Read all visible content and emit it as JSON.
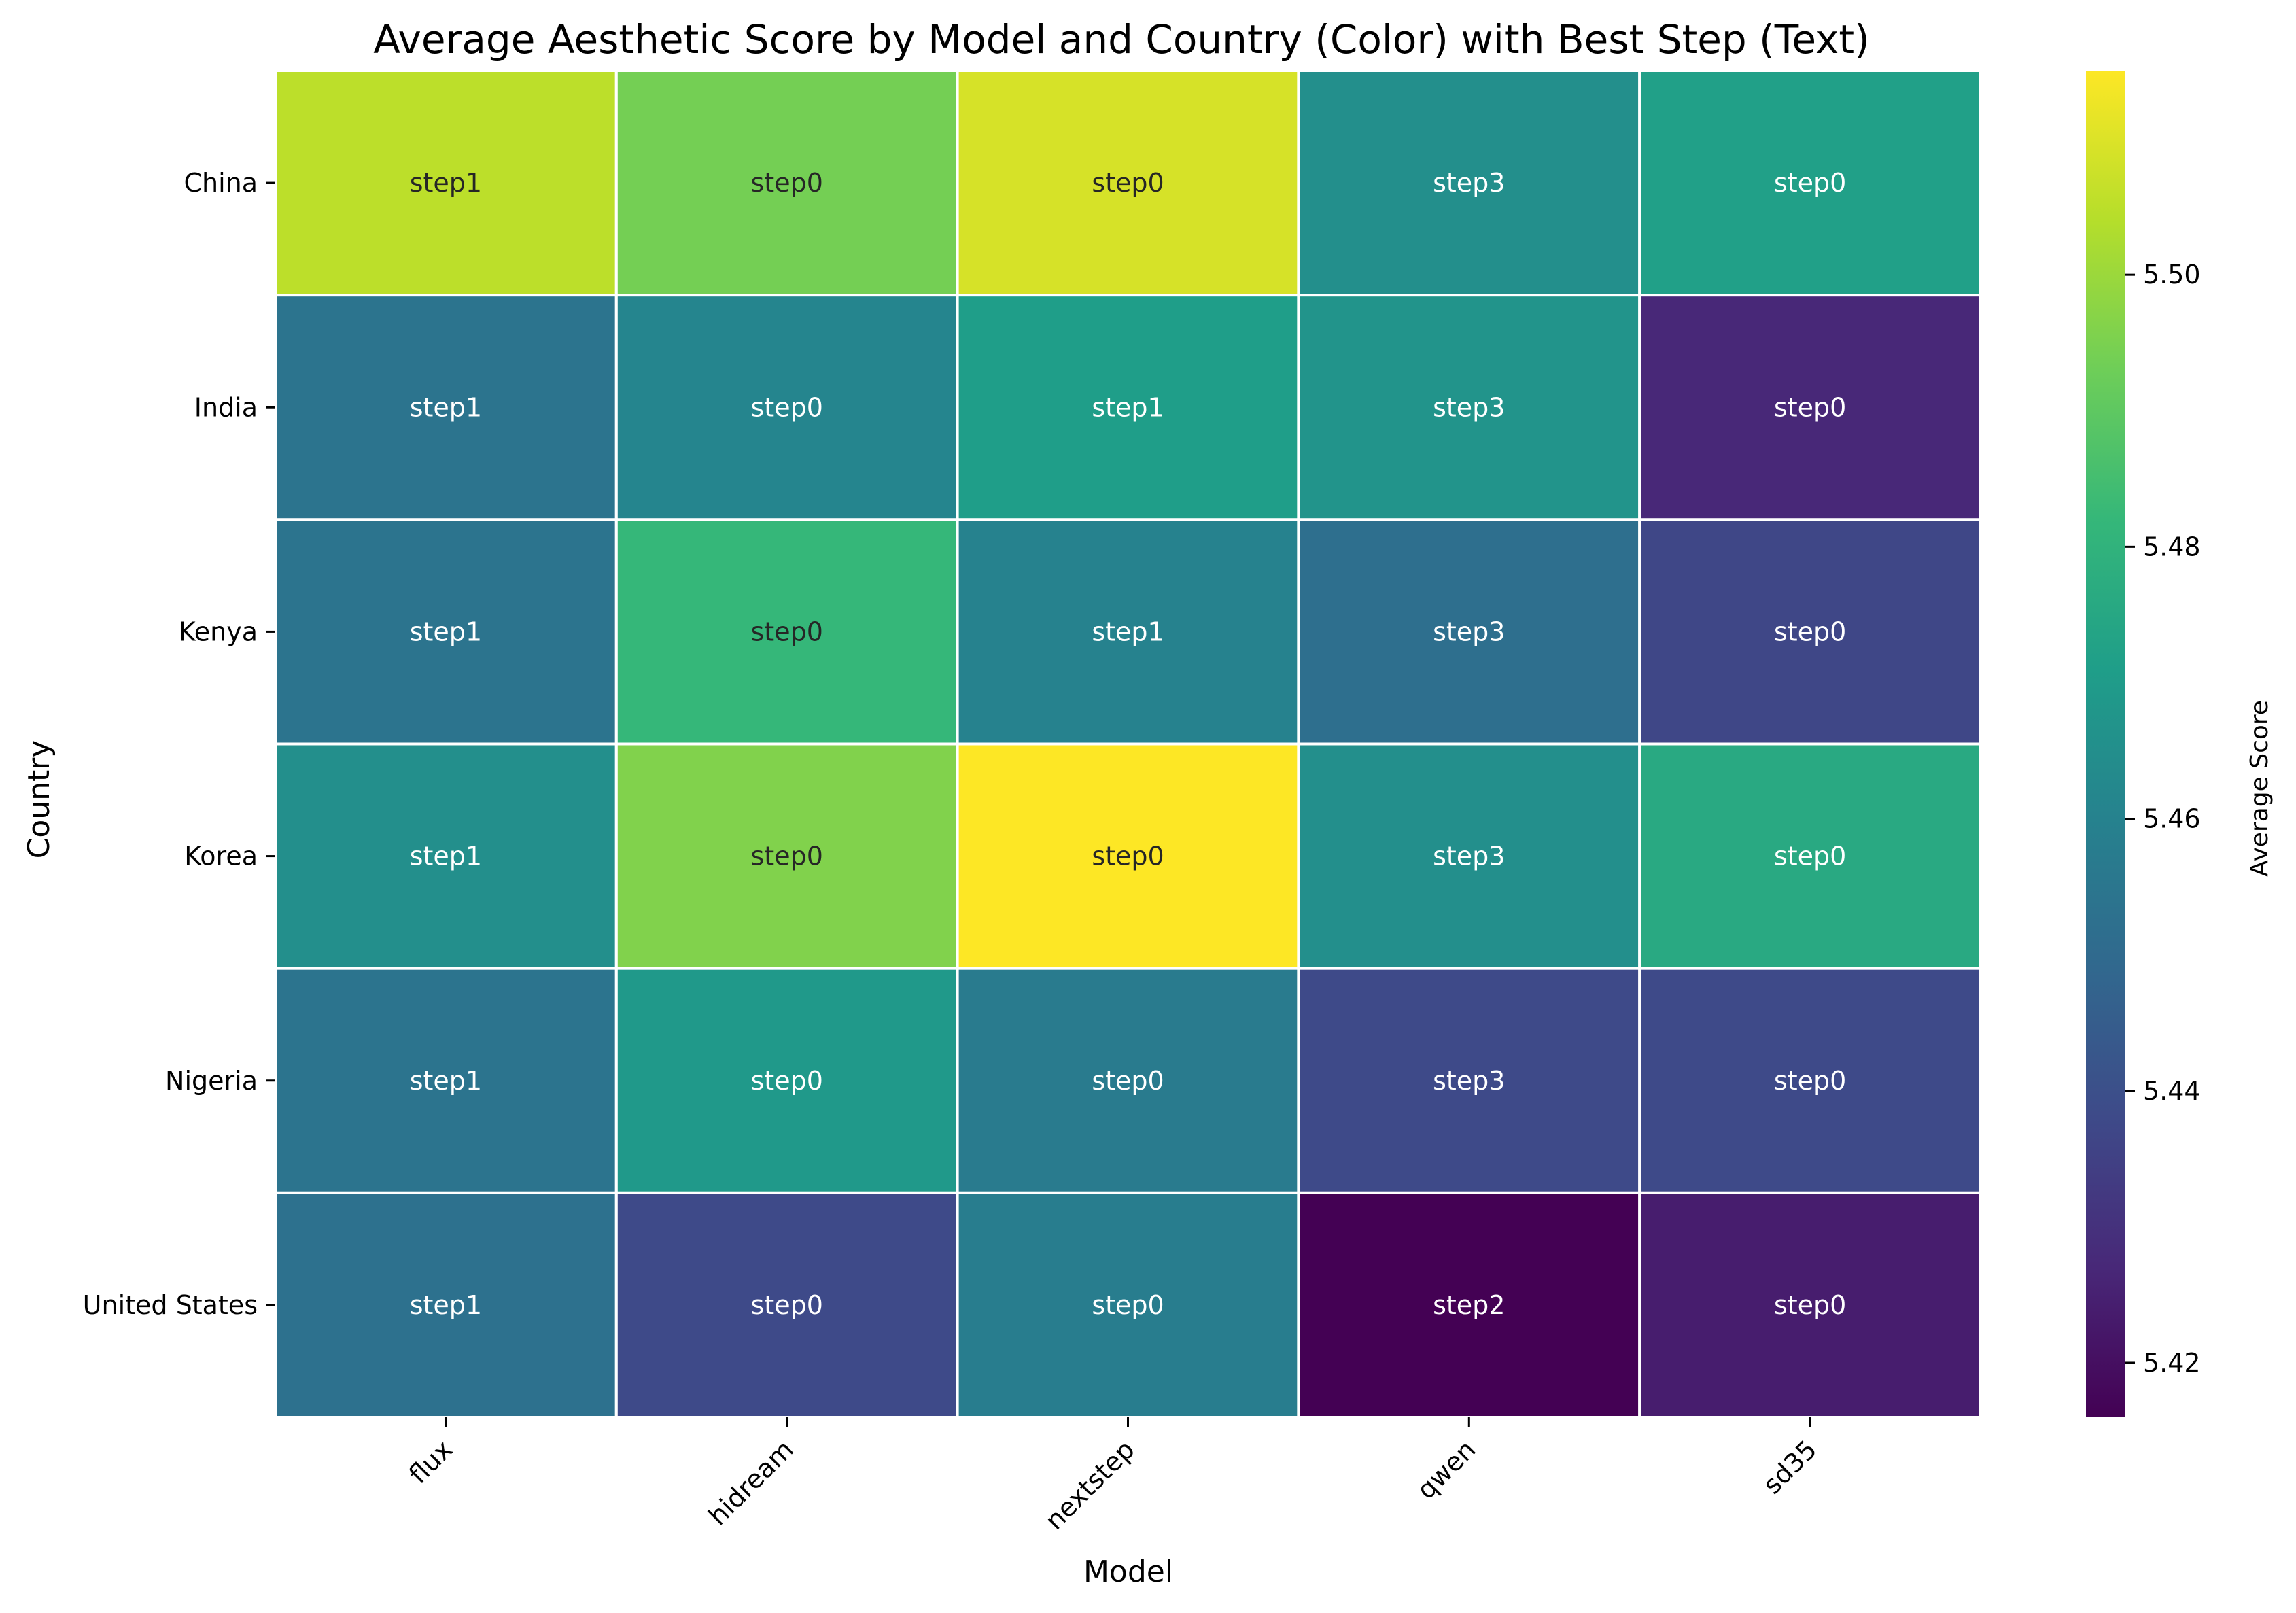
{
  "chart_data": {
    "type": "heatmap",
    "title": "Average Aesthetic Score by Model and Country (Color) with Best Step (Text)",
    "xlabel": "Model",
    "ylabel": "Country",
    "x_categories": [
      "flux",
      "hidream",
      "nextstep",
      "qwen",
      "sd35"
    ],
    "y_categories": [
      "China",
      "India",
      "Kenya",
      "Korea",
      "Nigeria",
      "United States"
    ],
    "values": [
      [
        5.505,
        5.494,
        5.509,
        5.465,
        5.472
      ],
      [
        5.454,
        5.461,
        5.471,
        5.467,
        5.427
      ],
      [
        5.454,
        5.482,
        5.46,
        5.452,
        5.437
      ],
      [
        5.465,
        5.496,
        5.515,
        5.465,
        5.476
      ],
      [
        5.454,
        5.469,
        5.457,
        5.438,
        5.438
      ],
      [
        5.453,
        5.438,
        5.458,
        5.416,
        5.424
      ]
    ],
    "cell_labels": [
      [
        "step1",
        "step0",
        "step0",
        "step3",
        "step0"
      ],
      [
        "step1",
        "step0",
        "step1",
        "step3",
        "step0"
      ],
      [
        "step1",
        "step0",
        "step1",
        "step3",
        "step0"
      ],
      [
        "step1",
        "step0",
        "step0",
        "step3",
        "step0"
      ],
      [
        "step1",
        "step0",
        "step0",
        "step3",
        "step0"
      ],
      [
        "step1",
        "step0",
        "step0",
        "step2",
        "step0"
      ]
    ],
    "colorbar": {
      "label": "Average Score",
      "range": [
        5.416,
        5.515
      ],
      "ticks": [
        "5.42",
        "5.44",
        "5.46",
        "5.48",
        "5.50"
      ],
      "tick_values": [
        5.42,
        5.44,
        5.46,
        5.48,
        5.5
      ],
      "colormap": "viridis"
    },
    "grid": false,
    "legend": "colorbar-right"
  }
}
